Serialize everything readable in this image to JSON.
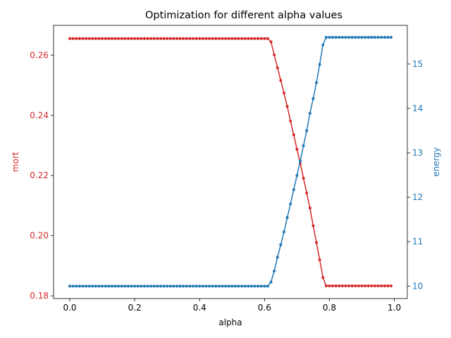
{
  "chart_data": {
    "type": "line",
    "title": "Optimization for different alpha values",
    "xlabel": "alpha",
    "ylabel_left": "mort",
    "ylabel_right": "energy",
    "colors": {
      "left": "#d62728",
      "right": "#1f77b4"
    },
    "xlim": [
      -0.05,
      1.04
    ],
    "ylim_left": [
      0.1791,
      0.2699
    ],
    "ylim_right": [
      9.72,
      15.87
    ],
    "xticks": [
      "0.0",
      "0.2",
      "0.4",
      "0.6",
      "0.8",
      "1.0"
    ],
    "yticks_left": [
      "0.18",
      "0.20",
      "0.22",
      "0.24",
      "0.26"
    ],
    "yticks_right": [
      "10",
      "11",
      "12",
      "13",
      "14",
      "15"
    ],
    "grid": false,
    "legend": "none",
    "x": [
      0.0,
      0.01,
      0.02,
      0.03,
      0.04,
      0.05,
      0.06,
      0.07,
      0.08,
      0.09,
      0.1,
      0.11,
      0.12,
      0.13,
      0.14,
      0.15,
      0.16,
      0.17,
      0.18,
      0.19,
      0.2,
      0.21,
      0.22,
      0.23,
      0.24,
      0.25,
      0.26,
      0.27,
      0.28,
      0.29,
      0.3,
      0.31,
      0.32,
      0.33,
      0.34,
      0.35,
      0.36,
      0.37,
      0.38,
      0.39,
      0.4,
      0.41,
      0.42,
      0.43,
      0.44,
      0.45,
      0.46,
      0.47,
      0.48,
      0.49,
      0.5,
      0.51,
      0.52,
      0.53,
      0.54,
      0.55,
      0.56,
      0.57,
      0.58,
      0.59,
      0.6,
      0.61,
      0.62,
      0.63,
      0.64,
      0.65,
      0.66,
      0.67,
      0.68,
      0.69,
      0.7,
      0.71,
      0.72,
      0.73,
      0.74,
      0.75,
      0.76,
      0.77,
      0.78,
      0.79,
      0.8,
      0.81,
      0.82,
      0.83,
      0.84,
      0.85,
      0.86,
      0.87,
      0.88,
      0.89,
      0.9,
      0.91,
      0.92,
      0.93,
      0.94,
      0.95,
      0.96,
      0.97,
      0.98,
      0.99
    ],
    "series": [
      {
        "name": "mort",
        "axis": "left",
        "values": [
          0.2655,
          0.2655,
          0.2655,
          0.2655,
          0.2655,
          0.2655,
          0.2655,
          0.2655,
          0.2655,
          0.2655,
          0.2655,
          0.2655,
          0.2655,
          0.2655,
          0.2655,
          0.2655,
          0.2655,
          0.2655,
          0.2655,
          0.2655,
          0.2655,
          0.2655,
          0.2655,
          0.2655,
          0.2655,
          0.2655,
          0.2655,
          0.2655,
          0.2655,
          0.2655,
          0.2655,
          0.2655,
          0.2655,
          0.2655,
          0.2655,
          0.2655,
          0.2655,
          0.2655,
          0.2655,
          0.2655,
          0.2655,
          0.2655,
          0.2655,
          0.2655,
          0.2655,
          0.2655,
          0.2655,
          0.2655,
          0.2655,
          0.2655,
          0.2655,
          0.2655,
          0.2655,
          0.2655,
          0.2655,
          0.2655,
          0.2655,
          0.2655,
          0.2655,
          0.2655,
          0.2655,
          0.2655,
          0.2644,
          0.2601,
          0.2558,
          0.2516,
          0.2474,
          0.243,
          0.2381,
          0.2335,
          0.2287,
          0.2241,
          0.2191,
          0.2142,
          0.2092,
          0.2033,
          0.1977,
          0.192,
          0.1861,
          0.1833,
          0.1833,
          0.1833,
          0.1833,
          0.1833,
          0.1833,
          0.1833,
          0.1833,
          0.1833,
          0.1833,
          0.1833,
          0.1833,
          0.1833,
          0.1833,
          0.1833,
          0.1833,
          0.1833,
          0.1833,
          0.1833,
          0.1833,
          0.1833
        ]
      },
      {
        "name": "energy",
        "axis": "right",
        "values": [
          10.0,
          10.0,
          10.0,
          10.0,
          10.0,
          10.0,
          10.0,
          10.0,
          10.0,
          10.0,
          10.0,
          10.0,
          10.0,
          10.0,
          10.0,
          10.0,
          10.0,
          10.0,
          10.0,
          10.0,
          10.0,
          10.0,
          10.0,
          10.0,
          10.0,
          10.0,
          10.0,
          10.0,
          10.0,
          10.0,
          10.0,
          10.0,
          10.0,
          10.0,
          10.0,
          10.0,
          10.0,
          10.0,
          10.0,
          10.0,
          10.0,
          10.0,
          10.0,
          10.0,
          10.0,
          10.0,
          10.0,
          10.0,
          10.0,
          10.0,
          10.0,
          10.0,
          10.0,
          10.0,
          10.0,
          10.0,
          10.0,
          10.0,
          10.0,
          10.0,
          10.0,
          10.0,
          10.09,
          10.34,
          10.65,
          10.93,
          11.22,
          11.54,
          11.85,
          12.17,
          12.49,
          12.82,
          13.16,
          13.5,
          13.89,
          14.22,
          14.58,
          14.99,
          15.43,
          15.6,
          15.6,
          15.6,
          15.6,
          15.6,
          15.6,
          15.6,
          15.6,
          15.6,
          15.6,
          15.6,
          15.6,
          15.6,
          15.6,
          15.6,
          15.6,
          15.6,
          15.6,
          15.6,
          15.6,
          15.6
        ]
      }
    ]
  }
}
